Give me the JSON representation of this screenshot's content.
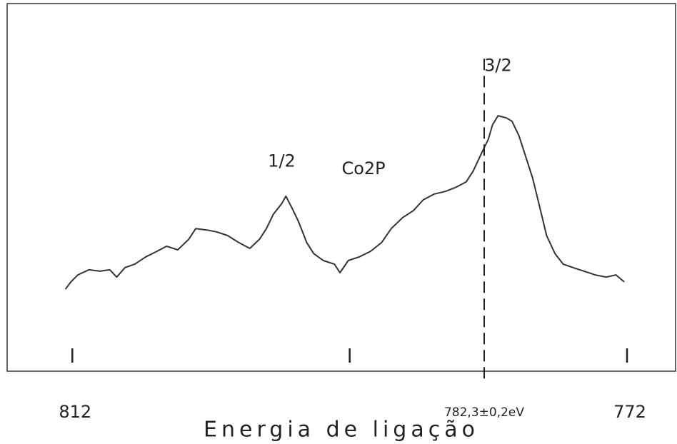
{
  "chart_data": {
    "type": "line",
    "xlabel": "Energia de ligação",
    "xlim": [
      816.7,
      768.5
    ],
    "xticks": [
      812,
      {
        "value": 792
      },
      772
    ],
    "ylim": [
      0,
      100
    ],
    "series": [
      {
        "name": "Co2P",
        "color": "#333333",
        "x": [
          812.5,
          812.1,
          811.6,
          810.8,
          810.0,
          809.3,
          808.8,
          808.2,
          807.5,
          806.7,
          805.9,
          805.2,
          804.4,
          803.6,
          803.1,
          802.3,
          801.6,
          800.8,
          800.0,
          799.2,
          798.5,
          798.0,
          797.5,
          796.9,
          796.6,
          796.2,
          795.7,
          795.1,
          794.6,
          793.9,
          793.1,
          792.7,
          792.1,
          791.3,
          790.5,
          789.7,
          789.0,
          788.2,
          787.4,
          786.7,
          785.9,
          785.1,
          784.3,
          783.6,
          783.1,
          782.5,
          782.0,
          781.7,
          781.3,
          780.7,
          780.3,
          779.8,
          779.3,
          778.8,
          778.3,
          777.8,
          777.2,
          776.6,
          775.9,
          775.1,
          774.3,
          773.5,
          772.8,
          772.2
        ],
        "values": [
          22.3,
          24.3,
          26.2,
          27.6,
          27.2,
          27.6,
          25.6,
          28.2,
          29.1,
          31.1,
          32.6,
          34.0,
          33.0,
          35.9,
          38.8,
          38.4,
          37.9,
          36.9,
          35.0,
          33.4,
          35.9,
          38.8,
          42.7,
          45.6,
          47.6,
          44.7,
          40.8,
          35.0,
          32.0,
          30.1,
          29.1,
          26.8,
          30.1,
          31.1,
          32.6,
          35.0,
          38.8,
          41.7,
          43.7,
          46.6,
          48.2,
          48.9,
          50.1,
          51.5,
          54.4,
          59.2,
          63.1,
          67.0,
          69.5,
          68.9,
          68.0,
          64.1,
          58.3,
          52.4,
          44.7,
          36.9,
          32.0,
          29.1,
          28.2,
          27.2,
          26.2,
          25.6,
          26.2,
          24.3
        ]
      }
    ],
    "annotations": [
      {
        "text": "3/2",
        "x": 781.3,
        "y": 83
      },
      {
        "text": "1/2",
        "x": 796.9,
        "y": 57
      },
      {
        "text": "Co2P",
        "x": 791.0,
        "y": 55
      },
      {
        "text": "782,3±0,2eV",
        "x": 782.3
      }
    ]
  }
}
